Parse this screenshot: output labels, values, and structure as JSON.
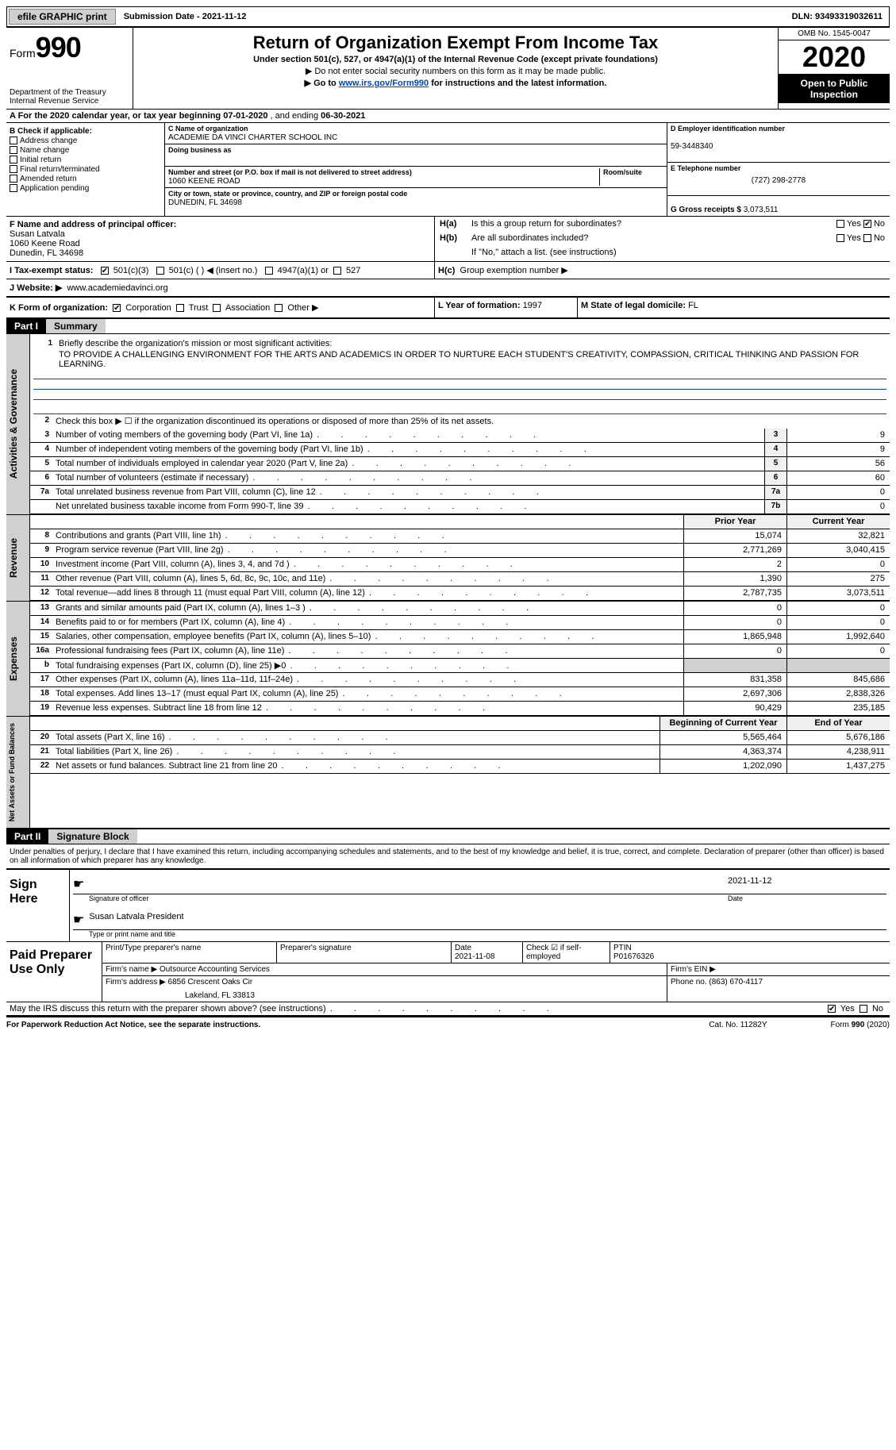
{
  "topbar": {
    "efile": "efile GRAPHIC print",
    "sub_date_label": "Submission Date - ",
    "sub_date": "2021-11-12",
    "dln_label": "DLN: ",
    "dln": "93493319032611"
  },
  "header": {
    "form_label": "Form",
    "form_num": "990",
    "dept": "Department of the Treasury\nInternal Revenue Service",
    "title": "Return of Organization Exempt From Income Tax",
    "subtitle": "Under section 501(c), 527, or 4947(a)(1) of the Internal Revenue Code (except private foundations)",
    "note1": "▶ Do not enter social security numbers on this form as it may be made public.",
    "note2_pre": "▶ Go to ",
    "note2_link": "www.irs.gov/Form990",
    "note2_post": " for instructions and the latest information.",
    "omb": "OMB No. 1545-0047",
    "year": "2020",
    "inspect": "Open to Public Inspection"
  },
  "line_a": {
    "pre": "A For the 2020 calendar year, or tax year beginning ",
    "begin": "07-01-2020",
    "mid": "   , and ending ",
    "end": "06-30-2021"
  },
  "section_b": {
    "label": "B Check if applicable:",
    "items": [
      "Address change",
      "Name change",
      "Initial return",
      "Final return/terminated",
      "Amended return",
      "Application pending"
    ]
  },
  "section_c": {
    "name_lbl": "C Name of organization",
    "name": "ACADEMIE DA VINCI CHARTER SCHOOL INC",
    "dba_lbl": "Doing business as",
    "addr_lbl": "Number and street (or P.O. box if mail is not delivered to street address)",
    "room_lbl": "Room/suite",
    "addr": "1060 KEENE ROAD",
    "city_lbl": "City or town, state or province, country, and ZIP or foreign postal code",
    "city": "DUNEDIN, FL  34698"
  },
  "section_d": {
    "ein_lbl": "D Employer identification number",
    "ein": "59-3448340",
    "tel_lbl": "E Telephone number",
    "tel": "(727) 298-2778",
    "gross_lbl": "G Gross receipts $ ",
    "gross": "3,073,511"
  },
  "section_f": {
    "lbl": "F Name and address of principal officer:",
    "name": "Susan Latvala",
    "addr1": "1060 Keene Road",
    "addr2": "Dunedin, FL  34698"
  },
  "section_h": {
    "ha_lbl": "H(a)",
    "ha_txt": "Is this a group return for subordinates?",
    "hb_lbl": "H(b)",
    "hb_txt": "Are all subordinates included?",
    "hb_note": "If \"No,\" attach a list. (see instructions)",
    "hc_lbl": "H(c)",
    "hc_txt": "Group exemption number ▶",
    "yes": "Yes",
    "no": "No"
  },
  "section_i": {
    "lbl": "I   Tax-exempt status:",
    "opts": [
      "501(c)(3)",
      "501(c) (  ) ◀ (insert no.)",
      "4947(a)(1) or",
      "527"
    ]
  },
  "section_j": {
    "lbl": "J   Website: ▶",
    "val": "www.academiedavinci.org"
  },
  "section_k": {
    "lbl": "K Form of organization:",
    "opts": [
      "Corporation",
      "Trust",
      "Association",
      "Other ▶"
    ]
  },
  "section_lm": {
    "l_lbl": "L Year of formation: ",
    "l_val": "1997",
    "m_lbl": "M State of legal domicile: ",
    "m_val": "FL"
  },
  "part1": {
    "num": "Part I",
    "title": "Summary",
    "q1_lbl": "1",
    "q1": "Briefly describe the organization's mission or most significant activities:",
    "mission": "TO PROVIDE A CHALLENGING ENVIRONMENT FOR THE ARTS AND ACADEMICS IN ORDER TO NURTURE EACH STUDENT'S CREATIVITY, COMPASSION, CRITICAL THINKING AND PASSION FOR LEARNING.",
    "q2_lbl": "2",
    "q2": "Check this box ▶ ☐  if the organization discontinued its operations or disposed of more than 25% of its net assets.",
    "rows_gov": [
      {
        "n": "3",
        "d": "Number of voting members of the governing body (Part VI, line 1a)",
        "box": "3",
        "v": "9"
      },
      {
        "n": "4",
        "d": "Number of independent voting members of the governing body (Part VI, line 1b)",
        "box": "4",
        "v": "9"
      },
      {
        "n": "5",
        "d": "Total number of individuals employed in calendar year 2020 (Part V, line 2a)",
        "box": "5",
        "v": "56"
      },
      {
        "n": "6",
        "d": "Total number of volunteers (estimate if necessary)",
        "box": "6",
        "v": "60"
      },
      {
        "n": "7a",
        "d": "Total unrelated business revenue from Part VIII, column (C), line 12",
        "box": "7a",
        "v": "0"
      },
      {
        "n": "",
        "d": "Net unrelated business taxable income from Form 990-T, line 39",
        "box": "7b",
        "v": "0"
      }
    ],
    "col_hdr_prior": "Prior Year",
    "col_hdr_curr": "Current Year",
    "rows_rev": [
      {
        "n": "8",
        "d": "Contributions and grants (Part VIII, line 1h)",
        "p": "15,074",
        "c": "32,821"
      },
      {
        "n": "9",
        "d": "Program service revenue (Part VIII, line 2g)",
        "p": "2,771,269",
        "c": "3,040,415"
      },
      {
        "n": "10",
        "d": "Investment income (Part VIII, column (A), lines 3, 4, and 7d )",
        "p": "2",
        "c": "0"
      },
      {
        "n": "11",
        "d": "Other revenue (Part VIII, column (A), lines 5, 6d, 8c, 9c, 10c, and 11e)",
        "p": "1,390",
        "c": "275"
      },
      {
        "n": "12",
        "d": "Total revenue—add lines 8 through 11 (must equal Part VIII, column (A), line 12)",
        "p": "2,787,735",
        "c": "3,073,511"
      }
    ],
    "rows_exp": [
      {
        "n": "13",
        "d": "Grants and similar amounts paid (Part IX, column (A), lines 1–3 )",
        "p": "0",
        "c": "0"
      },
      {
        "n": "14",
        "d": "Benefits paid to or for members (Part IX, column (A), line 4)",
        "p": "0",
        "c": "0"
      },
      {
        "n": "15",
        "d": "Salaries, other compensation, employee benefits (Part IX, column (A), lines 5–10)",
        "p": "1,865,948",
        "c": "1,992,640"
      },
      {
        "n": "16a",
        "d": "Professional fundraising fees (Part IX, column (A), line 11e)",
        "p": "0",
        "c": "0"
      },
      {
        "n": "b",
        "d": "Total fundraising expenses (Part IX, column (D), line 25) ▶0",
        "p": "",
        "c": "",
        "shade": true
      },
      {
        "n": "17",
        "d": "Other expenses (Part IX, column (A), lines 11a–11d, 11f–24e)",
        "p": "831,358",
        "c": "845,686"
      },
      {
        "n": "18",
        "d": "Total expenses. Add lines 13–17 (must equal Part IX, column (A), line 25)",
        "p": "2,697,306",
        "c": "2,838,326"
      },
      {
        "n": "19",
        "d": "Revenue less expenses. Subtract line 18 from line 12",
        "p": "90,429",
        "c": "235,185"
      }
    ],
    "col_hdr_begin": "Beginning of Current Year",
    "col_hdr_end": "End of Year",
    "rows_net": [
      {
        "n": "20",
        "d": "Total assets (Part X, line 16)",
        "p": "5,565,464",
        "c": "5,676,186"
      },
      {
        "n": "21",
        "d": "Total liabilities (Part X, line 26)",
        "p": "4,363,374",
        "c": "4,238,911"
      },
      {
        "n": "22",
        "d": "Net assets or fund balances. Subtract line 21 from line 20",
        "p": "1,202,090",
        "c": "1,437,275"
      }
    ],
    "side_gov": "Activities & Governance",
    "side_rev": "Revenue",
    "side_exp": "Expenses",
    "side_net": "Net Assets or Fund Balances",
    "b_lbl": "b"
  },
  "part2": {
    "num": "Part II",
    "title": "Signature Block",
    "decl": "Under penalties of perjury, I declare that I have examined this return, including accompanying schedules and statements, and to the best of my knowledge and belief, it is true, correct, and complete. Declaration of preparer (other than officer) is based on all information of which preparer has any knowledge.",
    "sign_here": "Sign Here",
    "sig_officer": "Signature of officer",
    "sig_date_lbl": "Date",
    "sig_date": "2021-11-12",
    "officer_name": "Susan Latvala  President",
    "officer_type": "Type or print name and title",
    "paid_prep": "Paid Preparer Use Only",
    "prep_name_lbl": "Print/Type preparer's name",
    "prep_sig_lbl": "Preparer's signature",
    "prep_date_lbl": "Date",
    "prep_date": "2021-11-08",
    "prep_check_lbl": "Check ☑ if self-employed",
    "ptin_lbl": "PTIN",
    "ptin": "P01676326",
    "firm_name_lbl": "Firm's name   ▶ ",
    "firm_name": "Outsource Accounting Services",
    "firm_ein_lbl": "Firm's EIN ▶",
    "firm_addr_lbl": "Firm's address ▶ ",
    "firm_addr1": "6856 Crescent Oaks Cir",
    "firm_addr2": "Lakeland, FL  33813",
    "phone_lbl": "Phone no. ",
    "phone": "(863) 670-4117",
    "may_irs": "May the IRS discuss this return with the preparer shown above? (see instructions)",
    "yes": "Yes",
    "no": "No"
  },
  "footer": {
    "left": "For Paperwork Reduction Act Notice, see the separate instructions.",
    "mid": "Cat. No. 11282Y",
    "right": "Form 990 (2020)"
  }
}
